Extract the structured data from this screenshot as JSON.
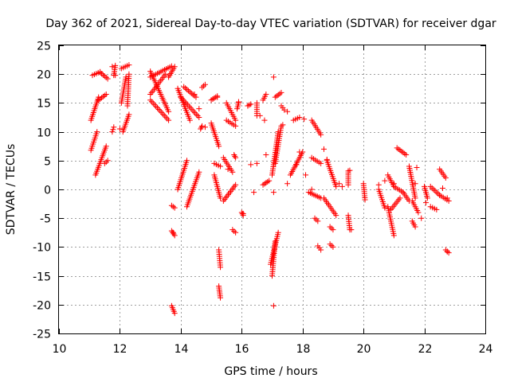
{
  "chart_data": {
    "type": "scatter",
    "title": "Day 362 of 2021, Sidereal Day-to-day VTEC variation (SDTVAR) for receiver dgar",
    "xlabel": "GPS time / hours",
    "ylabel": "SDTVAR / TECUs",
    "xlim": [
      10,
      24
    ],
    "ylim": [
      -25,
      25
    ],
    "xticks": [
      10,
      12,
      14,
      16,
      18,
      20,
      22,
      24
    ],
    "yticks": [
      -25,
      -20,
      -15,
      -10,
      -5,
      0,
      5,
      10,
      15,
      20,
      25
    ],
    "grid": true,
    "marker": "+",
    "color": "#ff0000",
    "tracks": [
      {
        "x0": 11.05,
        "y0": 12.0,
        "x1": 11.3,
        "y1": 16.0
      },
      {
        "x0": 11.1,
        "y0": 19.8,
        "x1": 11.35,
        "y1": 20.4
      },
      {
        "x0": 11.35,
        "y0": 20.3,
        "x1": 11.6,
        "y1": 19.2
      },
      {
        "x0": 11.3,
        "y0": 15.5,
        "x1": 11.55,
        "y1": 16.5
      },
      {
        "x0": 11.05,
        "y0": 6.8,
        "x1": 11.25,
        "y1": 10.0
      },
      {
        "x0": 11.2,
        "y0": 2.5,
        "x1": 11.55,
        "y1": 7.5
      },
      {
        "x0": 11.5,
        "y0": 4.5,
        "x1": 11.6,
        "y1": 5.0
      },
      {
        "x0": 11.8,
        "y0": 19.8,
        "x1": 11.85,
        "y1": 21.5
      },
      {
        "x0": 11.75,
        "y0": 10.0,
        "x1": 11.8,
        "y1": 10.8
      },
      {
        "x0": 12.05,
        "y0": 21.0,
        "x1": 12.3,
        "y1": 21.6
      },
      {
        "x0": 12.05,
        "y0": 15.0,
        "x1": 12.2,
        "y1": 19.5
      },
      {
        "x0": 12.25,
        "y0": 14.5,
        "x1": 12.3,
        "y1": 20.0
      },
      {
        "x0": 12.1,
        "y0": 10.0,
        "x1": 12.3,
        "y1": 13.0
      },
      {
        "x0": 13.0,
        "y0": 19.5,
        "x1": 13.7,
        "y1": 21.4
      },
      {
        "x0": 13.0,
        "y0": 20.5,
        "x1": 13.6,
        "y1": 13.5
      },
      {
        "x0": 13.0,
        "y0": 16.5,
        "x1": 13.5,
        "y1": 20.0
      },
      {
        "x0": 13.0,
        "y0": 15.5,
        "x1": 13.6,
        "y1": 12.0
      },
      {
        "x0": 13.6,
        "y0": 19.5,
        "x1": 13.8,
        "y1": 21.3
      },
      {
        "x0": 13.7,
        "y0": -2.8,
        "x1": 13.8,
        "y1": -3.2
      },
      {
        "x0": 13.7,
        "y0": -7.2,
        "x1": 13.8,
        "y1": -8.0
      },
      {
        "x0": 13.7,
        "y0": -20.2,
        "x1": 13.8,
        "y1": -21.5
      },
      {
        "x0": 13.9,
        "y0": 17.5,
        "x1": 14.3,
        "y1": 12.0
      },
      {
        "x0": 14.0,
        "y0": 16.0,
        "x1": 14.6,
        "y1": 12.5
      },
      {
        "x0": 14.1,
        "y0": 17.8,
        "x1": 14.5,
        "y1": 16.0
      },
      {
        "x0": 13.9,
        "y0": 0.0,
        "x1": 14.2,
        "y1": 5.0
      },
      {
        "x0": 14.2,
        "y0": -3.0,
        "x1": 14.6,
        "y1": 3.0
      },
      {
        "x0": 14.7,
        "y0": 17.7,
        "x1": 14.8,
        "y1": 18.2
      },
      {
        "x0": 14.65,
        "y0": 10.5,
        "x1": 14.7,
        "y1": 11.0
      },
      {
        "x0": 15.0,
        "y0": 15.5,
        "x1": 15.2,
        "y1": 16.2
      },
      {
        "x0": 15.0,
        "y0": 11.5,
        "x1": 15.25,
        "y1": 7.5
      },
      {
        "x0": 15.1,
        "y0": 4.5,
        "x1": 15.3,
        "y1": 4.0
      },
      {
        "x0": 15.1,
        "y0": 2.5,
        "x1": 15.3,
        "y1": -1.5
      },
      {
        "x0": 15.25,
        "y0": -10.5,
        "x1": 15.3,
        "y1": -13.5
      },
      {
        "x0": 15.25,
        "y0": -16.8,
        "x1": 15.3,
        "y1": -18.8
      },
      {
        "x0": 15.5,
        "y0": 15.0,
        "x1": 15.8,
        "y1": 12.0
      },
      {
        "x0": 15.5,
        "y0": 12.0,
        "x1": 15.8,
        "y1": 11.0
      },
      {
        "x0": 15.4,
        "y0": 5.5,
        "x1": 15.7,
        "y1": 3.0
      },
      {
        "x0": 15.4,
        "y0": -2.0,
        "x1": 15.8,
        "y1": 0.8
      },
      {
        "x0": 15.75,
        "y0": 6.0,
        "x1": 15.8,
        "y1": 5.5
      },
      {
        "x0": 15.7,
        "y0": -7.0,
        "x1": 15.8,
        "y1": -7.5
      },
      {
        "x0": 15.85,
        "y0": 14.0,
        "x1": 15.9,
        "y1": 15.0
      },
      {
        "x0": 16.0,
        "y0": -4.0,
        "x1": 16.05,
        "y1": -4.5
      },
      {
        "x0": 16.2,
        "y0": 14.5,
        "x1": 16.3,
        "y1": 14.8
      },
      {
        "x0": 16.5,
        "y0": 15.0,
        "x1": 16.5,
        "y1": 12.8
      },
      {
        "x0": 16.7,
        "y0": 15.5,
        "x1": 16.8,
        "y1": 16.5
      },
      {
        "x0": 16.7,
        "y0": 0.8,
        "x1": 16.9,
        "y1": 1.5
      },
      {
        "x0": 17.0,
        "y0": 2.5,
        "x1": 17.2,
        "y1": 10.0
      },
      {
        "x0": 17.1,
        "y0": 4.5,
        "x1": 17.3,
        "y1": 11.0
      },
      {
        "x0": 16.95,
        "y0": -13.0,
        "x1": 17.2,
        "y1": -7.5
      },
      {
        "x0": 17.0,
        "y0": -15.0,
        "x1": 17.1,
        "y1": -9.0
      },
      {
        "x0": 17.1,
        "y0": 16.0,
        "x1": 17.3,
        "y1": 16.8
      },
      {
        "x0": 17.3,
        "y0": 14.5,
        "x1": 17.4,
        "y1": 13.8
      },
      {
        "x0": 17.7,
        "y0": 12.0,
        "x1": 17.9,
        "y1": 12.5
      },
      {
        "x0": 17.6,
        "y0": 2.5,
        "x1": 18.0,
        "y1": 6.5
      },
      {
        "x0": 18.3,
        "y0": 12.0,
        "x1": 18.6,
        "y1": 9.5
      },
      {
        "x0": 18.3,
        "y0": 5.5,
        "x1": 18.6,
        "y1": 4.5
      },
      {
        "x0": 18.2,
        "y0": -0.5,
        "x1": 18.6,
        "y1": -1.5
      },
      {
        "x0": 18.4,
        "y0": -5.0,
        "x1": 18.5,
        "y1": -5.5
      },
      {
        "x0": 18.5,
        "y0": -9.8,
        "x1": 18.6,
        "y1": -10.5
      },
      {
        "x0": 18.8,
        "y0": 5.0,
        "x1": 19.1,
        "y1": 0.5
      },
      {
        "x0": 18.7,
        "y0": -1.5,
        "x1": 19.1,
        "y1": -4.5
      },
      {
        "x0": 18.9,
        "y0": -9.5,
        "x1": 19.0,
        "y1": -10.0
      },
      {
        "x0": 18.9,
        "y0": -6.5,
        "x1": 19.0,
        "y1": -7.0
      },
      {
        "x0": 19.5,
        "y0": -4.5,
        "x1": 19.55,
        "y1": -7.0
      },
      {
        "x0": 19.5,
        "y0": 3.2,
        "x1": 19.5,
        "y1": 0.8
      },
      {
        "x0": 20.0,
        "y0": 1.0,
        "x1": 20.05,
        "y1": -1.8
      },
      {
        "x0": 20.5,
        "y0": 0.0,
        "x1": 20.7,
        "y1": -3.2
      },
      {
        "x0": 20.8,
        "y0": 2.5,
        "x1": 21.0,
        "y1": 0.5
      },
      {
        "x0": 20.8,
        "y0": -3.0,
        "x1": 21.0,
        "y1": -8.0
      },
      {
        "x0": 20.9,
        "y0": -3.5,
        "x1": 21.2,
        "y1": -1.5
      },
      {
        "x0": 21.0,
        "y0": 0.5,
        "x1": 21.3,
        "y1": -0.5
      },
      {
        "x0": 21.1,
        "y0": 7.2,
        "x1": 21.4,
        "y1": 6.0
      },
      {
        "x0": 21.3,
        "y0": -0.5,
        "x1": 21.5,
        "y1": -2.0
      },
      {
        "x0": 21.5,
        "y0": 4.0,
        "x1": 21.7,
        "y1": -1.5
      },
      {
        "x0": 21.6,
        "y0": -2.0,
        "x1": 21.8,
        "y1": -4.0
      },
      {
        "x0": 21.6,
        "y0": -5.5,
        "x1": 21.7,
        "y1": -6.5
      },
      {
        "x0": 22.0,
        "y0": 0.5,
        "x1": 22.1,
        "y1": -1.5
      },
      {
        "x0": 22.2,
        "y0": 0.5,
        "x1": 22.5,
        "y1": -1.0
      },
      {
        "x0": 22.2,
        "y0": -3.0,
        "x1": 22.4,
        "y1": -3.5
      },
      {
        "x0": 22.5,
        "y0": 3.5,
        "x1": 22.7,
        "y1": 2.0
      },
      {
        "x0": 22.5,
        "y0": -1.0,
        "x1": 22.8,
        "y1": -2.0
      },
      {
        "x0": 22.7,
        "y0": -10.5,
        "x1": 22.8,
        "y1": -11.0
      }
    ],
    "points": [
      [
        11.75,
        21.3
      ],
      [
        11.85,
        19.8
      ],
      [
        12.0,
        10.5
      ],
      [
        13.75,
        -7.5
      ],
      [
        14.45,
        16.5
      ],
      [
        14.6,
        14.0
      ],
      [
        14.8,
        10.8
      ],
      [
        15.2,
        16.0
      ],
      [
        15.55,
        3.5
      ],
      [
        15.9,
        15.2
      ],
      [
        16.05,
        -4.2
      ],
      [
        16.2,
        14.5
      ],
      [
        16.3,
        4.3
      ],
      [
        16.4,
        -0.5
      ],
      [
        16.5,
        4.5
      ],
      [
        16.6,
        12.8
      ],
      [
        16.75,
        12.0
      ],
      [
        16.8,
        6.0
      ],
      [
        17.05,
        19.5
      ],
      [
        17.05,
        -0.5
      ],
      [
        17.05,
        -20.2
      ],
      [
        17.35,
        11.2
      ],
      [
        17.5,
        1.0
      ],
      [
        17.5,
        13.5
      ],
      [
        17.8,
        4.3
      ],
      [
        17.9,
        6.5
      ],
      [
        18.05,
        12.2
      ],
      [
        18.1,
        2.5
      ],
      [
        18.3,
        0.0
      ],
      [
        18.7,
        7.0
      ],
      [
        18.8,
        5.2
      ],
      [
        19.2,
        1.0
      ],
      [
        19.3,
        0.5
      ],
      [
        19.55,
        3.3
      ],
      [
        19.6,
        -7.0
      ],
      [
        20.5,
        0.8
      ],
      [
        20.7,
        1.5
      ],
      [
        21.0,
        1.0
      ],
      [
        21.7,
        1.0
      ],
      [
        21.75,
        3.8
      ],
      [
        21.9,
        -5.0
      ],
      [
        22.05,
        -2.3
      ],
      [
        22.6,
        0.2
      ],
      [
        22.75,
        -1.5
      ],
      [
        22.75,
        -10.8
      ]
    ]
  }
}
